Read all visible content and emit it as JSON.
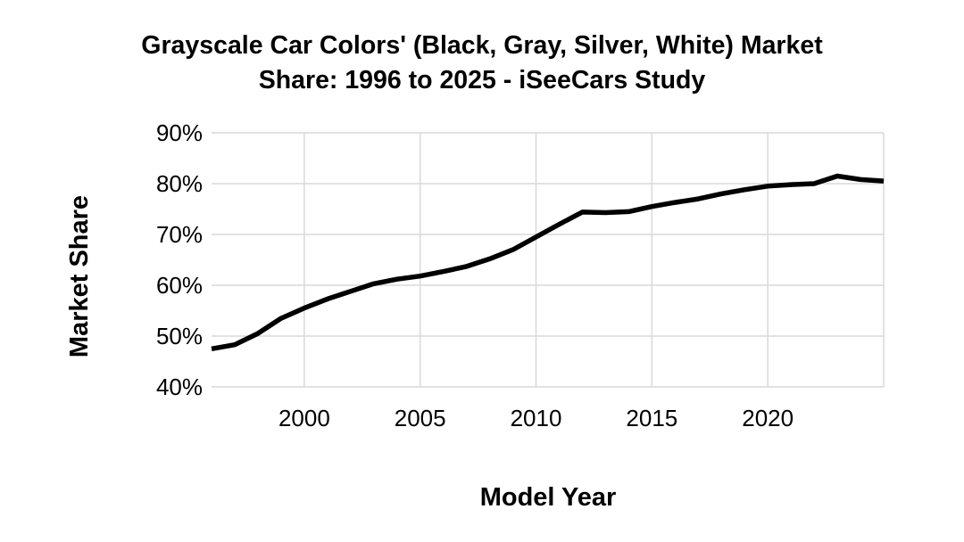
{
  "chart_data": {
    "type": "line",
    "title_lines": [
      "Grayscale Car Colors' (Black, Gray, Silver, White) Market",
      "Share: 1996 to 2025 - iSeeCars Study"
    ],
    "xlabel": "Model Year",
    "ylabel": "Market Share",
    "xlim": [
      1996,
      2025
    ],
    "ylim": [
      40,
      90
    ],
    "x_ticks": [
      2000,
      2005,
      2010,
      2015,
      2020
    ],
    "y_ticks": [
      40,
      50,
      60,
      70,
      80,
      90
    ],
    "y_tick_labels": [
      "40%",
      "50%",
      "60%",
      "70%",
      "80%",
      "90%"
    ],
    "grid": true,
    "line_color": "#000000",
    "grid_color": "#d9d9d9",
    "series": [
      {
        "x": [
          1996,
          1997,
          1998,
          1999,
          2000,
          2001,
          2002,
          2003,
          2004,
          2005,
          2006,
          2007,
          2008,
          2009,
          2010,
          2011,
          2012,
          2013,
          2014,
          2015,
          2016,
          2017,
          2018,
          2019,
          2020,
          2021,
          2022,
          2023,
          2024,
          2025
        ],
        "values": [
          47.5,
          48.3,
          50.5,
          53.5,
          55.5,
          57.3,
          58.8,
          60.3,
          61.2,
          61.8,
          62.7,
          63.7,
          65.2,
          67.0,
          69.5,
          72.0,
          74.4,
          74.3,
          74.5,
          75.5,
          76.3,
          77.0,
          78.0,
          78.8,
          79.5,
          79.8,
          80.0,
          81.5,
          80.8,
          80.5
        ]
      }
    ]
  }
}
